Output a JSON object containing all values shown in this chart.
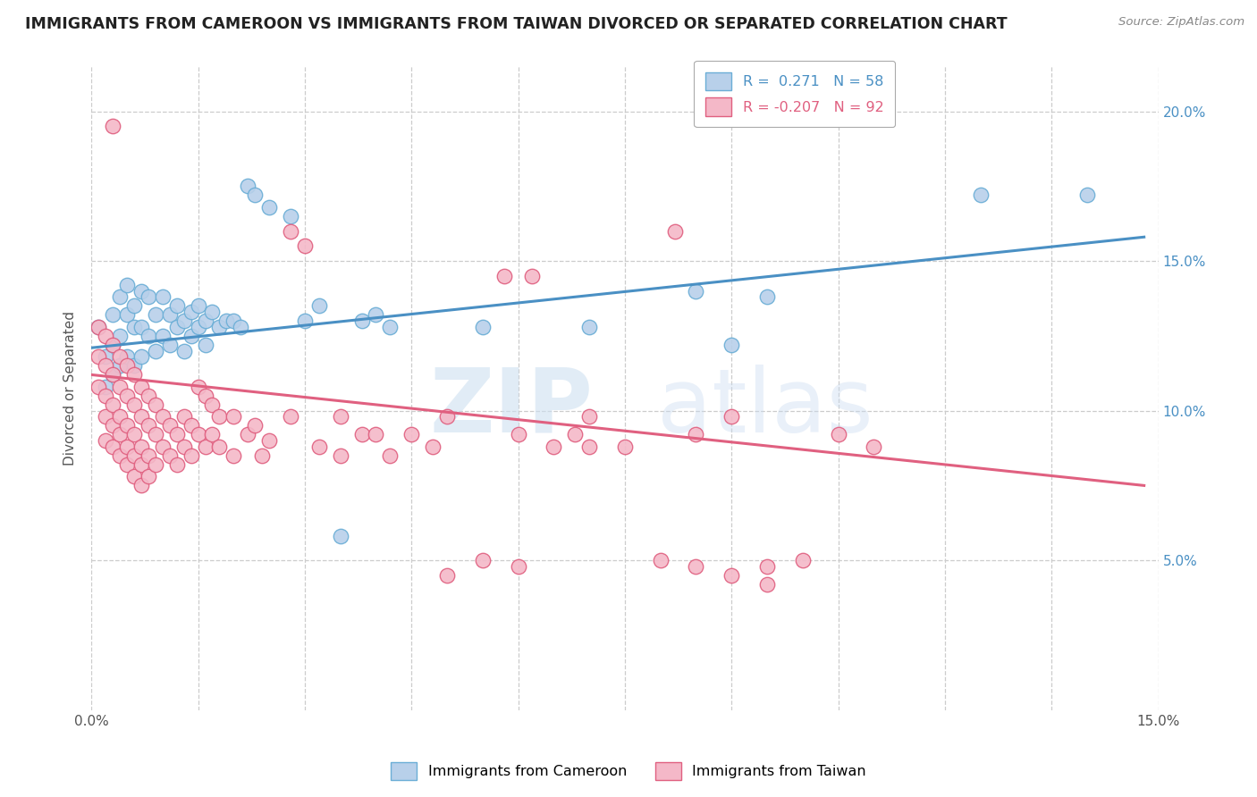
{
  "title": "IMMIGRANTS FROM CAMEROON VS IMMIGRANTS FROM TAIWAN DIVORCED OR SEPARATED CORRELATION CHART",
  "source_text": "Source: ZipAtlas.com",
  "ylabel": "Divorced or Separated",
  "xmin": 0.0,
  "xmax": 0.15,
  "ymin": 0.0,
  "ymax": 0.215,
  "watermark_zip": "ZIP",
  "watermark_atlas": "atlas",
  "blue_color": "#b8d0ea",
  "blue_edge_color": "#6baed6",
  "pink_color": "#f4b8c8",
  "pink_edge_color": "#e06080",
  "blue_line_color": "#4a90c4",
  "pink_line_color": "#e06080",
  "right_tick_color": "#4a90c4",
  "blue_line": [
    0.0,
    0.121,
    0.148,
    0.158
  ],
  "pink_line": [
    0.0,
    0.112,
    0.148,
    0.075
  ],
  "blue_scatter": [
    [
      0.001,
      0.128
    ],
    [
      0.002,
      0.118
    ],
    [
      0.002,
      0.108
    ],
    [
      0.003,
      0.132
    ],
    [
      0.003,
      0.122
    ],
    [
      0.003,
      0.112
    ],
    [
      0.004,
      0.138
    ],
    [
      0.004,
      0.125
    ],
    [
      0.004,
      0.115
    ],
    [
      0.005,
      0.142
    ],
    [
      0.005,
      0.132
    ],
    [
      0.005,
      0.118
    ],
    [
      0.006,
      0.135
    ],
    [
      0.006,
      0.128
    ],
    [
      0.006,
      0.115
    ],
    [
      0.007,
      0.14
    ],
    [
      0.007,
      0.128
    ],
    [
      0.007,
      0.118
    ],
    [
      0.008,
      0.138
    ],
    [
      0.008,
      0.125
    ],
    [
      0.009,
      0.132
    ],
    [
      0.009,
      0.12
    ],
    [
      0.01,
      0.138
    ],
    [
      0.01,
      0.125
    ],
    [
      0.011,
      0.132
    ],
    [
      0.011,
      0.122
    ],
    [
      0.012,
      0.135
    ],
    [
      0.012,
      0.128
    ],
    [
      0.013,
      0.13
    ],
    [
      0.013,
      0.12
    ],
    [
      0.014,
      0.133
    ],
    [
      0.014,
      0.125
    ],
    [
      0.015,
      0.135
    ],
    [
      0.015,
      0.128
    ],
    [
      0.016,
      0.13
    ],
    [
      0.016,
      0.122
    ],
    [
      0.017,
      0.133
    ],
    [
      0.018,
      0.128
    ],
    [
      0.019,
      0.13
    ],
    [
      0.02,
      0.13
    ],
    [
      0.021,
      0.128
    ],
    [
      0.022,
      0.175
    ],
    [
      0.023,
      0.172
    ],
    [
      0.025,
      0.168
    ],
    [
      0.028,
      0.165
    ],
    [
      0.03,
      0.13
    ],
    [
      0.032,
      0.135
    ],
    [
      0.035,
      0.058
    ],
    [
      0.038,
      0.13
    ],
    [
      0.04,
      0.132
    ],
    [
      0.042,
      0.128
    ],
    [
      0.055,
      0.128
    ],
    [
      0.07,
      0.128
    ],
    [
      0.085,
      0.14
    ],
    [
      0.09,
      0.122
    ],
    [
      0.095,
      0.138
    ],
    [
      0.125,
      0.172
    ],
    [
      0.14,
      0.172
    ]
  ],
  "pink_scatter": [
    [
      0.001,
      0.128
    ],
    [
      0.001,
      0.118
    ],
    [
      0.001,
      0.108
    ],
    [
      0.002,
      0.125
    ],
    [
      0.002,
      0.115
    ],
    [
      0.002,
      0.105
    ],
    [
      0.002,
      0.098
    ],
    [
      0.002,
      0.09
    ],
    [
      0.003,
      0.122
    ],
    [
      0.003,
      0.112
    ],
    [
      0.003,
      0.102
    ],
    [
      0.003,
      0.095
    ],
    [
      0.003,
      0.088
    ],
    [
      0.004,
      0.118
    ],
    [
      0.004,
      0.108
    ],
    [
      0.004,
      0.098
    ],
    [
      0.004,
      0.092
    ],
    [
      0.004,
      0.085
    ],
    [
      0.005,
      0.115
    ],
    [
      0.005,
      0.105
    ],
    [
      0.005,
      0.095
    ],
    [
      0.005,
      0.088
    ],
    [
      0.005,
      0.082
    ],
    [
      0.006,
      0.112
    ],
    [
      0.006,
      0.102
    ],
    [
      0.006,
      0.092
    ],
    [
      0.006,
      0.085
    ],
    [
      0.006,
      0.078
    ],
    [
      0.007,
      0.108
    ],
    [
      0.007,
      0.098
    ],
    [
      0.007,
      0.088
    ],
    [
      0.007,
      0.082
    ],
    [
      0.007,
      0.075
    ],
    [
      0.008,
      0.105
    ],
    [
      0.008,
      0.095
    ],
    [
      0.008,
      0.085
    ],
    [
      0.008,
      0.078
    ],
    [
      0.009,
      0.102
    ],
    [
      0.009,
      0.092
    ],
    [
      0.009,
      0.082
    ],
    [
      0.01,
      0.098
    ],
    [
      0.01,
      0.088
    ],
    [
      0.011,
      0.095
    ],
    [
      0.011,
      0.085
    ],
    [
      0.012,
      0.092
    ],
    [
      0.012,
      0.082
    ],
    [
      0.013,
      0.098
    ],
    [
      0.013,
      0.088
    ],
    [
      0.014,
      0.095
    ],
    [
      0.014,
      0.085
    ],
    [
      0.015,
      0.108
    ],
    [
      0.015,
      0.092
    ],
    [
      0.016,
      0.105
    ],
    [
      0.016,
      0.088
    ],
    [
      0.017,
      0.102
    ],
    [
      0.017,
      0.092
    ],
    [
      0.018,
      0.098
    ],
    [
      0.018,
      0.088
    ],
    [
      0.02,
      0.098
    ],
    [
      0.02,
      0.085
    ],
    [
      0.022,
      0.092
    ],
    [
      0.023,
      0.095
    ],
    [
      0.024,
      0.085
    ],
    [
      0.025,
      0.09
    ],
    [
      0.028,
      0.098
    ],
    [
      0.03,
      0.155
    ],
    [
      0.032,
      0.088
    ],
    [
      0.035,
      0.098
    ],
    [
      0.035,
      0.085
    ],
    [
      0.038,
      0.092
    ],
    [
      0.04,
      0.092
    ],
    [
      0.042,
      0.085
    ],
    [
      0.045,
      0.092
    ],
    [
      0.048,
      0.088
    ],
    [
      0.05,
      0.098
    ],
    [
      0.05,
      0.045
    ],
    [
      0.055,
      0.05
    ],
    [
      0.06,
      0.048
    ],
    [
      0.06,
      0.092
    ],
    [
      0.065,
      0.088
    ],
    [
      0.068,
      0.092
    ],
    [
      0.07,
      0.098
    ],
    [
      0.07,
      0.088
    ],
    [
      0.075,
      0.088
    ],
    [
      0.08,
      0.05
    ],
    [
      0.085,
      0.048
    ],
    [
      0.085,
      0.092
    ],
    [
      0.09,
      0.045
    ],
    [
      0.09,
      0.098
    ],
    [
      0.095,
      0.048
    ],
    [
      0.1,
      0.05
    ],
    [
      0.105,
      0.092
    ],
    [
      0.11,
      0.088
    ],
    [
      0.003,
      0.195
    ],
    [
      0.028,
      0.16
    ],
    [
      0.058,
      0.145
    ],
    [
      0.062,
      0.145
    ],
    [
      0.082,
      0.16
    ],
    [
      0.095,
      0.042
    ]
  ]
}
